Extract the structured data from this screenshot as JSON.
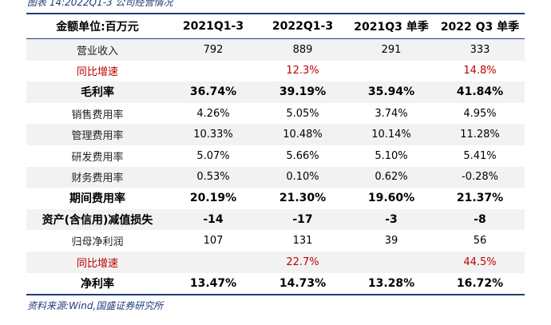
{
  "caption": "图表 14:2022Q1-3 公司经营情况",
  "table": {
    "header": [
      "金额单位:百万元",
      "2021Q1-3",
      "2022Q1-3",
      "2021Q3 单季",
      "2022 Q3 单季"
    ],
    "rows": [
      {
        "label": "营业收入",
        "values": [
          "792",
          "889",
          "291",
          "333"
        ]
      },
      {
        "label": "同比增速",
        "values": [
          "",
          "12.3%",
          "",
          "14.8%"
        ]
      },
      {
        "label": "毛利率",
        "values": [
          "36.74%",
          "39.19%",
          "35.94%",
          "41.84%"
        ]
      },
      {
        "label": "销售费用率",
        "values": [
          "4.26%",
          "5.05%",
          "3.74%",
          "4.95%"
        ]
      },
      {
        "label": "管理费用率",
        "values": [
          "10.33%",
          "10.48%",
          "10.14%",
          "11.28%"
        ]
      },
      {
        "label": "研发费用率",
        "values": [
          "5.07%",
          "5.66%",
          "5.10%",
          "5.41%"
        ]
      },
      {
        "label": "财务费用率",
        "values": [
          "0.53%",
          "0.10%",
          "0.62%",
          "-0.28%"
        ]
      },
      {
        "label": "期间费用率",
        "values": [
          "20.19%",
          "21.30%",
          "19.60%",
          "21.37%"
        ]
      },
      {
        "label": "资产(含信用)减值损失",
        "values": [
          "-14",
          "-17",
          "-3",
          "-8"
        ]
      },
      {
        "label": "归母净利润",
        "values": [
          "107",
          "131",
          "39",
          "56"
        ]
      },
      {
        "label": "同比增速",
        "values": [
          "",
          "22.7%",
          "",
          "44.5%"
        ]
      },
      {
        "label": "净利率",
        "values": [
          "13.47%",
          "14.73%",
          "13.28%",
          "16.72%"
        ]
      }
    ]
  },
  "source": "资料来源:Wind,国盛证券研究所",
  "colors": {
    "accent": "#1f3d7a",
    "highlight_red": "#c00000",
    "stripe": "#f2f2f2"
  }
}
